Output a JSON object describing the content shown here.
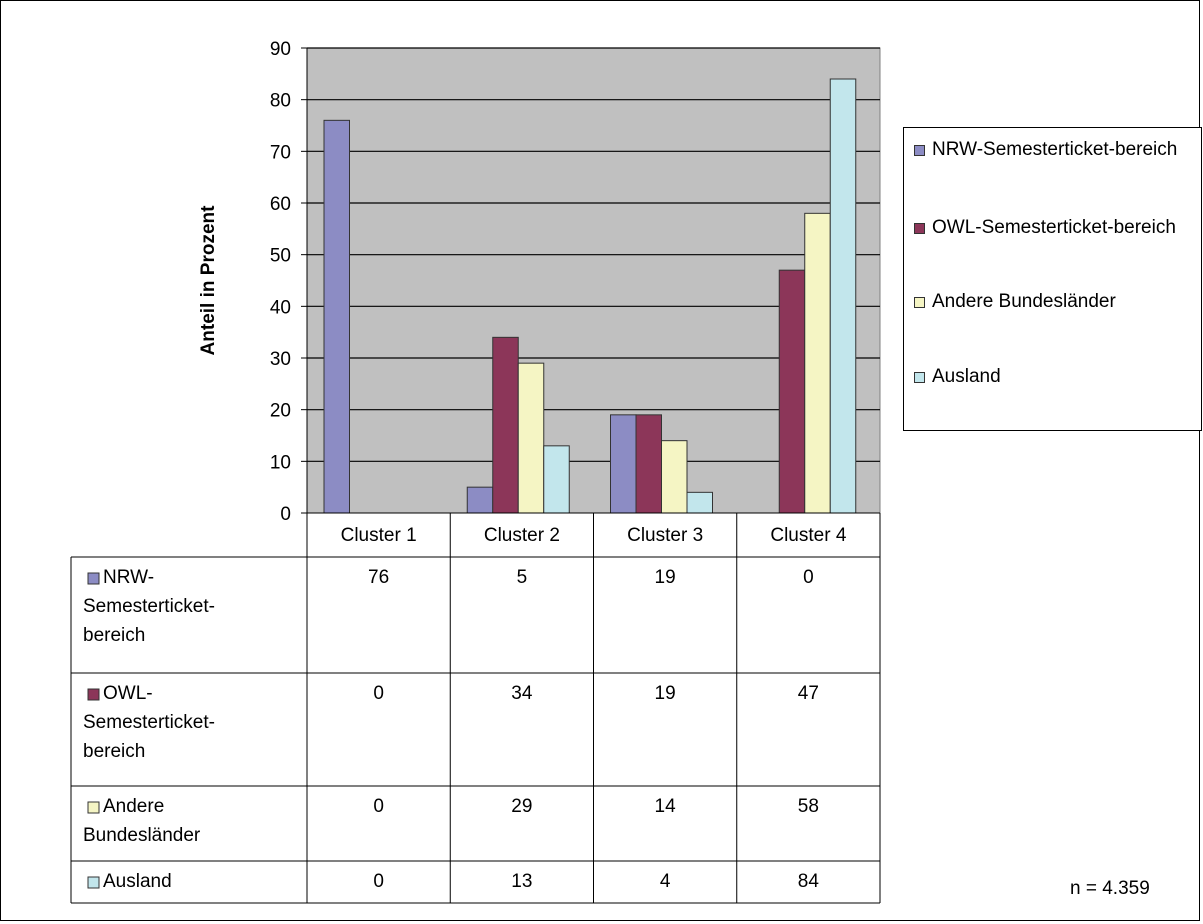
{
  "chart_data": {
    "type": "bar",
    "title": "",
    "xlabel": "",
    "ylabel": "Anteil in Prozent",
    "ylim": [
      0,
      90
    ],
    "yticks": [
      0,
      10,
      20,
      30,
      40,
      50,
      60,
      70,
      80,
      90
    ],
    "grid": true,
    "legend": "right",
    "categories": [
      "Cluster 1",
      "Cluster 2",
      "Cluster 3",
      "Cluster 4"
    ],
    "series": [
      {
        "name": "NRW-Semesterticket-bereich",
        "table_label": "NRW-Semesterticket-bereich",
        "color": "#8c8cc4",
        "values": [
          76,
          5,
          19,
          0
        ]
      },
      {
        "name": "OWL-Semesterticket-bereich",
        "table_label": "OWL-Semesterticket-bereich",
        "color": "#8c3659",
        "values": [
          0,
          34,
          19,
          47
        ]
      },
      {
        "name": "Andere Bundesländer",
        "table_label": "Andere Bundesländer",
        "color": "#f5f5c4",
        "values": [
          0,
          29,
          14,
          58
        ]
      },
      {
        "name": "Ausland",
        "table_label": "Ausland",
        "color": "#c2e6ec",
        "values": [
          0,
          13,
          4,
          84
        ]
      }
    ],
    "plot_background": "#c0c0c0"
  },
  "note": "n = 4.359"
}
